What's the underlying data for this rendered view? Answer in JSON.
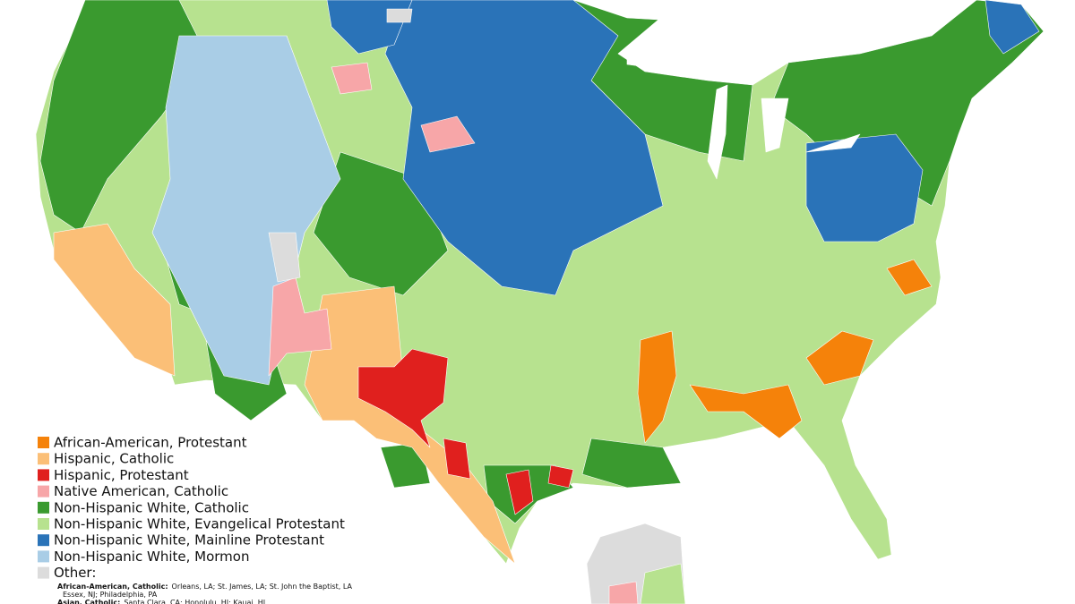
{
  "legend": {
    "items": [
      {
        "label": "African-American, Protestant",
        "color": "#f5820a"
      },
      {
        "label": "Hispanic, Catholic",
        "color": "#fbbf77"
      },
      {
        "label": "Hispanic, Protestant",
        "color": "#e0201e"
      },
      {
        "label": "Native American, Catholic",
        "color": "#f7a6a8"
      },
      {
        "label": "Non-Hispanic White, Catholic",
        "color": "#3a9a2f"
      },
      {
        "label": "Non-Hispanic White, Evangelical Protestant",
        "color": "#b7e28f"
      },
      {
        "label": "Non-Hispanic White, Mainline Protestant",
        "color": "#2a73b8"
      },
      {
        "label": "Non-Hispanic White, Mormon",
        "color": "#a9cde6"
      },
      {
        "label": "Other:",
        "color": "#dcdcdc"
      }
    ],
    "other_notes": [
      {
        "group": "African-American, Catholic:",
        "places": "Orleans, LA; St. James, LA; St. John the Baptist, LA",
        "places_2": "Essex, NJ; Philadelphia, PA"
      },
      {
        "group": "Asian, Catholic:",
        "places": "Santa Clara, CA; Honolulu, HI; Kauai, HI"
      }
    ]
  }
}
